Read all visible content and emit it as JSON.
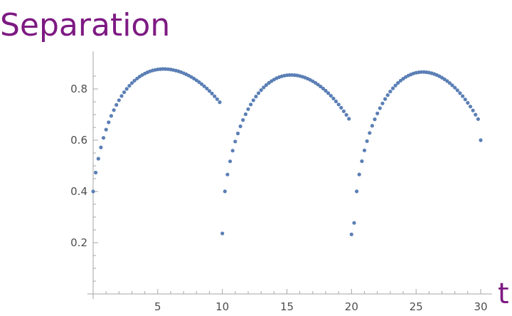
{
  "chart_data": {
    "type": "scatter",
    "title": "Separation",
    "xlabel": "t",
    "ylabel": "",
    "xlim": [
      0,
      30
    ],
    "ylim": [
      0,
      0.9
    ],
    "x_ticks": [
      5,
      10,
      15,
      20,
      25,
      30
    ],
    "x_tick_labels": [
      "5",
      "10",
      "15",
      "20",
      "25",
      "30"
    ],
    "y_ticks": [
      0.2,
      0.4,
      0.6,
      0.8
    ],
    "y_tick_labels": [
      "0.2",
      "0.4",
      "0.6",
      "0.8"
    ],
    "grid": false,
    "colors": {
      "points": "#5b7fb5",
      "title": "#7d1a82",
      "axis": "#a6a6a6",
      "ticks_text": "#4d4d4d"
    },
    "series": [
      {
        "x": [
          0,
          0.2,
          0.4,
          0.6,
          0.8,
          1,
          1.2,
          1.4,
          1.6,
          1.8,
          2,
          2.2,
          2.4,
          2.6,
          2.8,
          3,
          3.2,
          3.4,
          3.6,
          3.8,
          4,
          4.2,
          4.4,
          4.6,
          4.8,
          5,
          5.2,
          5.4,
          5.6,
          5.8,
          6,
          6.2,
          6.4,
          6.6,
          6.8,
          7,
          7.2,
          7.4,
          7.6,
          7.8,
          8,
          8.2,
          8.4,
          8.6,
          8.8,
          9,
          9.2,
          9.4,
          9.6,
          9.8,
          10,
          10.2,
          10.4,
          10.6,
          10.8,
          11,
          11.2,
          11.4,
          11.6,
          11.8,
          12,
          12.2,
          12.4,
          12.6,
          12.8,
          13,
          13.2,
          13.4,
          13.6,
          13.8,
          14,
          14.2,
          14.4,
          14.6,
          14.8,
          15,
          15.2,
          15.4,
          15.6,
          15.8,
          16,
          16.2,
          16.4,
          16.6,
          16.8,
          17,
          17.2,
          17.4,
          17.6,
          17.8,
          18,
          18.2,
          18.4,
          18.6,
          18.8,
          19,
          19.2,
          19.4,
          19.6,
          19.8,
          20,
          20.2,
          20.4,
          20.6,
          20.8,
          21,
          21.2,
          21.4,
          21.6,
          21.8,
          22,
          22.2,
          22.4,
          22.6,
          22.8,
          23,
          23.2,
          23.4,
          23.6,
          23.8,
          24,
          24.2,
          24.4,
          24.6,
          24.8,
          25,
          25.2,
          25.4,
          25.6,
          25.8,
          26,
          26.2,
          26.4,
          26.6,
          26.8,
          27,
          27.2,
          27.4,
          27.6,
          27.8,
          28,
          28.2,
          28.4,
          28.6,
          28.8,
          29,
          29.2,
          29.4,
          29.6,
          29.8,
          30
        ],
        "y": [
          0.4,
          0.4735,
          0.5279,
          0.5719,
          0.6091,
          0.6414,
          0.6698,
          0.6951,
          0.7176,
          0.7378,
          0.756,
          0.7724,
          0.7872,
          0.8004,
          0.8124,
          0.823,
          0.8325,
          0.8409,
          0.8483,
          0.8547,
          0.8603,
          0.865,
          0.8689,
          0.8721,
          0.8745,
          0.8763,
          0.8775,
          0.878,
          0.8779,
          0.8773,
          0.8761,
          0.8743,
          0.872,
          0.8691,
          0.8657,
          0.8617,
          0.8572,
          0.8522,
          0.8466,
          0.8405,
          0.8339,
          0.8266,
          0.8189,
          0.8106,
          0.8017,
          0.7922,
          0.7822,
          0.7715,
          0.7602,
          0.7482,
          0.2361,
          0.4002,
          0.4661,
          0.5175,
          0.5593,
          0.5951,
          0.6265,
          0.6542,
          0.679,
          0.7013,
          0.7214,
          0.7395,
          0.7558,
          0.7705,
          0.7837,
          0.7955,
          0.806,
          0.8153,
          0.8235,
          0.8306,
          0.8367,
          0.8419,
          0.8461,
          0.8494,
          0.8519,
          0.8536,
          0.8545,
          0.8546,
          0.854,
          0.8527,
          0.8506,
          0.8479,
          0.8444,
          0.8403,
          0.8355,
          0.8301,
          0.8239,
          0.8172,
          0.8098,
          0.8017,
          0.793,
          0.7836,
          0.7736,
          0.7629,
          0.7515,
          0.7394,
          0.7266,
          0.7131,
          0.6988,
          0.6837,
          0.2326,
          0.2772,
          0.4004,
          0.4664,
          0.5181,
          0.5603,
          0.5965,
          0.6283,
          0.6564,
          0.6816,
          0.7044,
          0.725,
          0.7437,
          0.7607,
          0.7761,
          0.79,
          0.8025,
          0.8137,
          0.8236,
          0.8324,
          0.84,
          0.8466,
          0.8522,
          0.8568,
          0.8605,
          0.8632,
          0.865,
          0.866,
          0.8661,
          0.8654,
          0.8639,
          0.8615,
          0.8584,
          0.8544,
          0.8497,
          0.8442,
          0.8379,
          0.8308,
          0.823,
          0.8143,
          0.8049,
          0.7947,
          0.7837,
          0.7719,
          0.7592,
          0.7457,
          0.7313,
          0.716,
          0.6998,
          0.6825,
          0.6
        ]
      }
    ]
  }
}
